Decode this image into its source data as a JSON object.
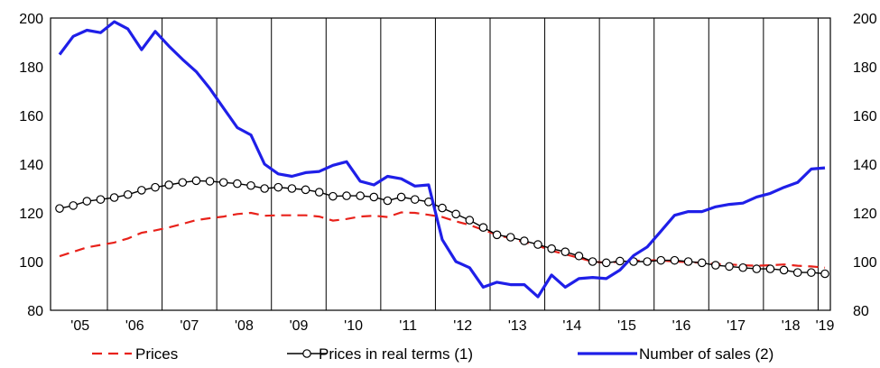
{
  "chart_data": {
    "type": "line",
    "xlabel": "",
    "ylabel": "",
    "ylim": [
      80,
      200
    ],
    "yticks": [
      80,
      100,
      120,
      140,
      160,
      180,
      200
    ],
    "grid": "vertical separators between years",
    "legend_position": "bottom",
    "x_ticks": [
      "'05",
      "'06",
      "'07",
      "'08",
      "'09",
      "'10",
      "'11",
      "'12",
      "'13",
      "'14",
      "'15",
      "'16",
      "'17",
      "'18",
      "'19"
    ],
    "x_note": "quarterly observations from 2005 Q1 to 2019 Q1",
    "series": [
      {
        "name": "Prices",
        "color": "#e8221b",
        "style": "dashed",
        "values": [
          102.2,
          104.0,
          105.8,
          106.8,
          107.8,
          109.5,
          111.8,
          112.8,
          114.0,
          115.5,
          117.0,
          117.8,
          118.5,
          119.5,
          120.0,
          118.8,
          119.0,
          119.0,
          119.0,
          118.5,
          116.8,
          117.5,
          118.5,
          118.8,
          118.3,
          120.2,
          120.0,
          119.2,
          118.3,
          116.5,
          115.0,
          113.0,
          111.0,
          109.5,
          108.0,
          106.5,
          104.5,
          103.0,
          101.5,
          100.0,
          99.5,
          100.0,
          100.3,
          100.5,
          100.5,
          100.0,
          99.8,
          99.5,
          99.0,
          98.8,
          98.5,
          98.3,
          98.5,
          98.8,
          98.3,
          98.0,
          97.5
        ]
      },
      {
        "name": "Prices in real terms (1)",
        "color": "#000000",
        "style": "solid-with-circle-markers",
        "values": [
          121.8,
          123.0,
          124.8,
          125.5,
          126.3,
          127.5,
          129.3,
          130.5,
          131.5,
          132.5,
          133.2,
          133.0,
          132.5,
          132.0,
          131.2,
          130.0,
          130.5,
          130.0,
          129.5,
          128.5,
          126.8,
          127.0,
          127.0,
          126.5,
          125.0,
          126.5,
          125.5,
          124.5,
          122.0,
          119.5,
          117.0,
          114.0,
          111.0,
          110.0,
          108.5,
          107.0,
          105.3,
          104.0,
          102.3,
          100.0,
          99.5,
          100.2,
          100.0,
          100.0,
          100.5,
          100.5,
          100.0,
          99.5,
          98.5,
          98.0,
          97.5,
          97.0,
          97.0,
          96.5,
          95.5,
          95.5,
          95.0
        ]
      },
      {
        "name": "Number of sales (2)",
        "color": "#1f1fe8",
        "style": "solid-thick",
        "values": [
          185.0,
          192.5,
          195.0,
          194.0,
          198.5,
          195.5,
          187.0,
          194.5,
          188.5,
          183.0,
          178.0,
          171.0,
          163.0,
          155.0,
          152.0,
          140.0,
          136.0,
          135.0,
          136.5,
          137.0,
          139.5,
          141.0,
          133.0,
          131.5,
          135.0,
          134.0,
          131.0,
          131.5,
          109.0,
          100.0,
          97.5,
          89.5,
          91.5,
          90.5,
          90.5,
          85.5,
          94.5,
          89.5,
          93.0,
          93.5,
          93.0,
          96.5,
          102.5,
          106.0,
          112.5,
          119.0,
          120.5,
          120.5,
          122.5,
          123.5,
          124.0,
          126.5,
          128.0,
          130.5,
          132.5,
          138.0,
          138.5
        ]
      }
    ]
  }
}
